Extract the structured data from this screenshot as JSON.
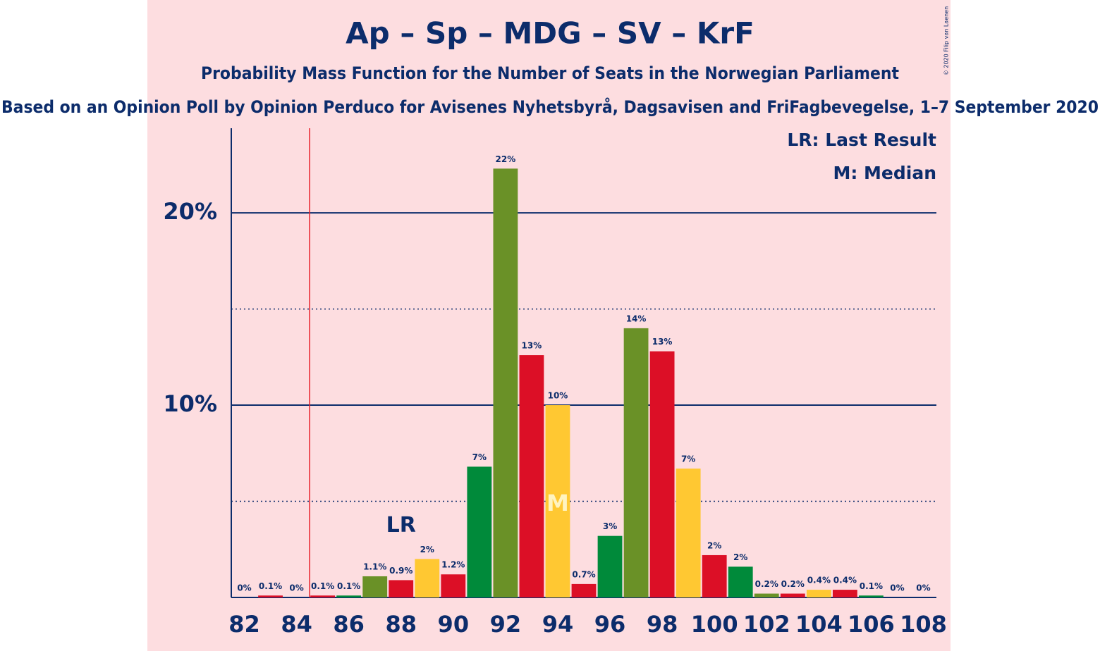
{
  "chart_data": {
    "type": "bar",
    "title": "Ap – Sp – MDG – SV – KrF",
    "subtitle": "Probability Mass Function for the Number of Seats in the Norwegian Parliament",
    "caption": "Based on an Opinion Poll by Opinion Perduco for Avisenes Nyhetsbyrå, Dagsavisen and FriFagbevegelse, 1–7 September 2020",
    "copyright": "© 2020 Filip van Laenen",
    "x": [
      82,
      83,
      84,
      85,
      86,
      87,
      88,
      89,
      90,
      91,
      92,
      93,
      94,
      95,
      96,
      97,
      98,
      99,
      100,
      101,
      102,
      103,
      104,
      105,
      106,
      107,
      108
    ],
    "values": [
      0,
      0.1,
      0,
      0.1,
      0.1,
      1.1,
      0.9,
      2.0,
      1.2,
      6.8,
      22.3,
      12.6,
      10.0,
      0.7,
      3.2,
      14.0,
      12.8,
      6.7,
      2.2,
      1.6,
      0.2,
      0.2,
      0.4,
      0.4,
      0.1,
      0,
      0
    ],
    "value_labels": [
      "0%",
      "0.1%",
      "0%",
      "0.1%",
      "0.1%",
      "1.1%",
      "0.9%",
      "2%",
      "1.2%",
      "7%",
      "22%",
      "13%",
      "10%",
      "0.7%",
      "3%",
      "14%",
      "13%",
      "7%",
      "2%",
      "2%",
      "0.2%",
      "0.2%",
      "0.4%",
      "0.4%",
      "0.1%",
      "0%",
      "0%"
    ],
    "colors": [
      "#6a9127",
      "#dc0f26",
      "#ffc832",
      "#dc0f26",
      "#008a3a",
      "#6a9127",
      "#dc0f26",
      "#ffc832",
      "#dc0f26",
      "#008a3a",
      "#6a9127",
      "#dc0f26",
      "#ffc832",
      "#dc0f26",
      "#008a3a",
      "#6a9127",
      "#dc0f26",
      "#ffc832",
      "#dc0f26",
      "#008a3a",
      "#6a9127",
      "#dc0f26",
      "#ffc832",
      "#dc0f26",
      "#008a3a",
      "#6a9127",
      "#dc0f26"
    ],
    "xlim": [
      81.5,
      108.5
    ],
    "xticks": [
      82,
      84,
      86,
      88,
      90,
      92,
      94,
      96,
      98,
      100,
      102,
      104,
      106,
      108
    ],
    "ylim": [
      0,
      24.4
    ],
    "yticks": [
      {
        "value": 10,
        "label": "10%"
      },
      {
        "value": 20,
        "label": "20%"
      }
    ],
    "minor_yticks": [
      5,
      15
    ],
    "grid": true,
    "majority": 85,
    "last_result": 88,
    "last_result_label": "LR",
    "median": 94,
    "median_label": "M",
    "legend": [
      "LR: Last Result",
      "M: Median"
    ],
    "legend_position": "upper right"
  }
}
